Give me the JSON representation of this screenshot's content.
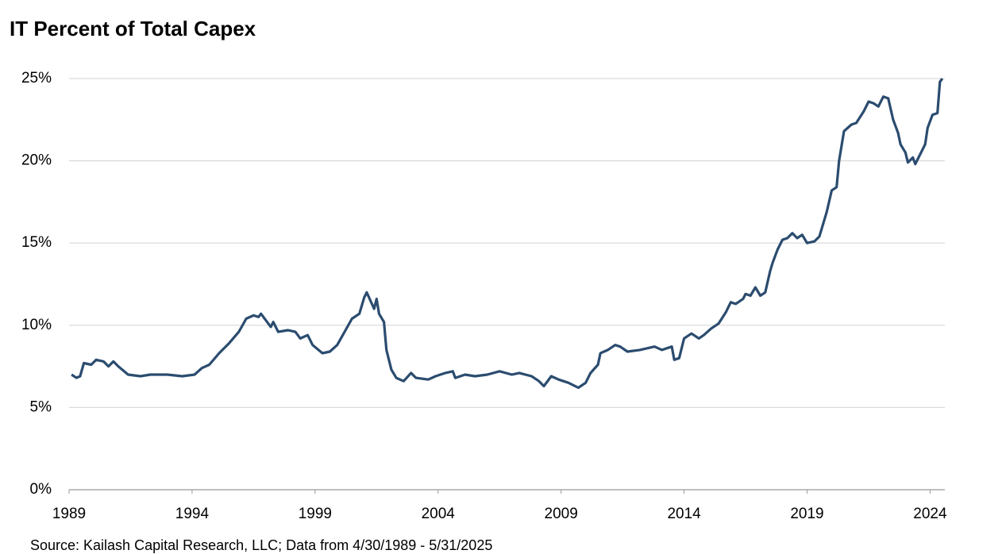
{
  "chart_data": {
    "type": "line",
    "title": "IT Percent of Total Capex",
    "source": "Source: Kailash Capital Research, LLC; Data from 4/30/1989 - 5/31/2025",
    "x": [
      1989.1,
      1989.3,
      1989.45,
      1989.6,
      1989.9,
      1990.1,
      1990.4,
      1990.6,
      1990.8,
      1991.0,
      1991.4,
      1991.9,
      1992.3,
      1993.0,
      1993.6,
      1994.1,
      1994.4,
      1994.7,
      1995.1,
      1995.5,
      1995.9,
      1996.2,
      1996.5,
      1996.7,
      1996.8,
      1997.2,
      1997.3,
      1997.5,
      1997.9,
      1998.2,
      1998.4,
      1998.7,
      1998.9,
      1999.3,
      1999.6,
      1999.9,
      2000.2,
      2000.5,
      2000.8,
      2001.0,
      2001.1,
      2001.4,
      2001.5,
      2001.6,
      2001.8,
      2001.9,
      2002.1,
      2002.3,
      2002.6,
      2002.9,
      2003.1,
      2003.6,
      2003.9,
      2004.3,
      2004.6,
      2004.7,
      2005.1,
      2005.5,
      2006.0,
      2006.5,
      2007.0,
      2007.3,
      2007.8,
      2008.1,
      2008.3,
      2008.6,
      2008.9,
      2009.3,
      2009.7,
      2010.0,
      2010.2,
      2010.5,
      2010.6,
      2010.9,
      2011.2,
      2011.4,
      2011.7,
      2012.2,
      2012.5,
      2012.8,
      2013.1,
      2013.5,
      2013.6,
      2013.8,
      2014.0,
      2014.3,
      2014.6,
      2014.8,
      2015.1,
      2015.4,
      2015.7,
      2015.9,
      2016.1,
      2016.4,
      2016.5,
      2016.7,
      2016.9,
      2017.1,
      2017.3,
      2017.5,
      2017.6,
      2017.8,
      2018.0,
      2018.2,
      2018.4,
      2018.6,
      2018.8,
      2019.0,
      2019.3,
      2019.5,
      2019.6,
      2019.8,
      2020.0,
      2020.2,
      2020.3,
      2020.5,
      2020.8,
      2021.0,
      2021.3,
      2021.5,
      2021.7,
      2021.9,
      2022.1,
      2022.3,
      2022.5,
      2022.7,
      2022.8,
      2023.0,
      2023.1,
      2023.3,
      2023.4,
      2023.5,
      2023.8,
      2023.9,
      2024.1,
      2024.3,
      2024.4,
      2024.5
    ],
    "series": [
      {
        "name": "IT Percent of Total Capex",
        "color": "#2b4c6f",
        "values": [
          7.0,
          6.8,
          6.9,
          7.7,
          7.6,
          7.9,
          7.8,
          7.5,
          7.8,
          7.5,
          7.0,
          6.9,
          7.0,
          7.0,
          6.9,
          7.0,
          7.4,
          7.6,
          8.3,
          8.9,
          9.6,
          10.4,
          10.6,
          10.5,
          10.7,
          9.9,
          10.2,
          9.6,
          9.7,
          9.6,
          9.2,
          9.4,
          8.8,
          8.3,
          8.4,
          8.8,
          9.6,
          10.4,
          10.7,
          11.7,
          12.0,
          11.0,
          11.6,
          10.7,
          10.2,
          8.5,
          7.3,
          6.8,
          6.6,
          7.1,
          6.8,
          6.7,
          6.9,
          7.1,
          7.2,
          6.8,
          7.0,
          6.9,
          7.0,
          7.2,
          7.0,
          7.1,
          6.9,
          6.6,
          6.3,
          6.9,
          6.7,
          6.5,
          6.2,
          6.5,
          7.1,
          7.6,
          8.3,
          8.5,
          8.8,
          8.7,
          8.4,
          8.5,
          8.6,
          8.7,
          8.5,
          8.7,
          7.9,
          8.0,
          9.2,
          9.5,
          9.2,
          9.4,
          9.8,
          10.1,
          10.8,
          11.4,
          11.3,
          11.6,
          11.9,
          11.8,
          12.3,
          11.8,
          12.0,
          13.3,
          13.8,
          14.6,
          15.2,
          15.3,
          15.6,
          15.3,
          15.5,
          15.0,
          15.1,
          15.4,
          15.9,
          16.9,
          18.2,
          18.4,
          20.0,
          21.8,
          22.2,
          22.3,
          23.0,
          23.6,
          23.5,
          23.3,
          23.9,
          23.8,
          22.5,
          21.7,
          21.0,
          20.5,
          19.9,
          20.2,
          19.8,
          20.1,
          21.0,
          22.0,
          22.8,
          22.9,
          24.8,
          25.0
        ]
      }
    ],
    "xlim": [
      1989,
      2024.6
    ],
    "xticks": [
      1989,
      1994,
      1999,
      2004,
      2009,
      2014,
      2019,
      2024
    ],
    "ylim": [
      0,
      25
    ],
    "yticks": [
      {
        "value": 0,
        "label": "0%"
      },
      {
        "value": 5,
        "label": "5%"
      },
      {
        "value": 10,
        "label": "10%"
      },
      {
        "value": 15,
        "label": "15%"
      },
      {
        "value": 20,
        "label": "20%"
      },
      {
        "value": 25,
        "label": "25%"
      }
    ],
    "grid": true
  }
}
